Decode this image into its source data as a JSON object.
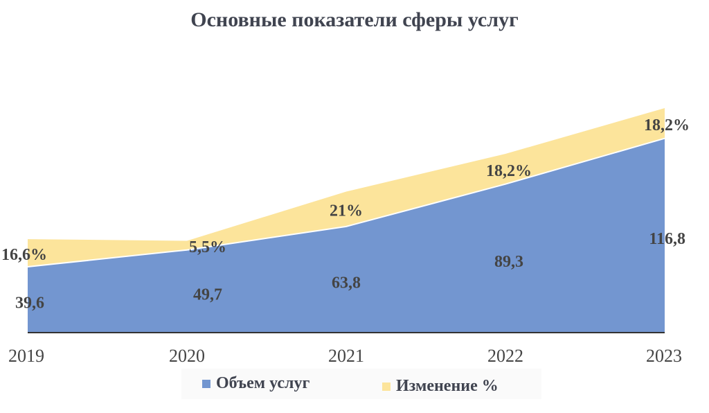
{
  "title": "Основные показатели сферы услуг",
  "colors": {
    "volume": "#7396d0",
    "change": "#fce49b",
    "axis": "#333333",
    "text": "#444444"
  },
  "legend": {
    "volume_label": "Объем услуг",
    "change_label": "Изменение %"
  },
  "chart_data": {
    "type": "area",
    "title": "Основные показатели сферы услуг",
    "xlabel": "",
    "ylabel": "",
    "stacked": true,
    "categories": [
      "2019",
      "2020",
      "2021",
      "2022",
      "2023"
    ],
    "series": [
      {
        "name": "Объем услуг",
        "values": [
          39.6,
          49.7,
          63.8,
          89.3,
          116.8
        ],
        "value_labels": [
          "39,6",
          "49,7",
          "63,8",
          "89,3",
          "116,8"
        ]
      },
      {
        "name": "Изменение %",
        "values": [
          16.6,
          5.5,
          21,
          18.2,
          18.2
        ],
        "value_labels": [
          "16,6%",
          "5,5%",
          "21%",
          "18,2%",
          "18,2%"
        ]
      }
    ],
    "grid": false,
    "legend_position": "bottom"
  }
}
